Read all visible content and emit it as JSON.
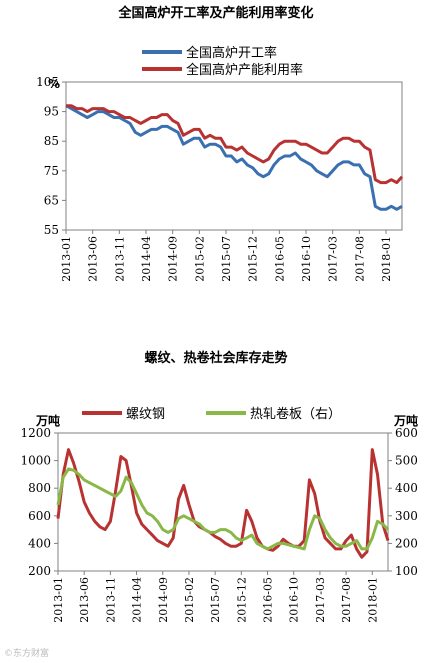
{
  "chart_data": [
    {
      "type": "line",
      "title": "全国高炉开工率及产能利用率变化",
      "ylabel": "%",
      "ylim": [
        55,
        105
      ],
      "yticks": [
        55,
        65,
        75,
        85,
        95,
        105
      ],
      "xticks": [
        "2013-01",
        "2013-06",
        "2013-11",
        "2014-04",
        "2014-09",
        "2015-02",
        "2015-07",
        "2015-12",
        "2016-05",
        "2016-10",
        "2017-03",
        "2017-08",
        "2018-01"
      ],
      "x": [
        "2013-01",
        "2013-02",
        "2013-03",
        "2013-04",
        "2013-05",
        "2013-06",
        "2013-07",
        "2013-08",
        "2013-09",
        "2013-10",
        "2013-11",
        "2013-12",
        "2014-01",
        "2014-02",
        "2014-03",
        "2014-04",
        "2014-05",
        "2014-06",
        "2014-07",
        "2014-08",
        "2014-09",
        "2014-10",
        "2014-11",
        "2014-12",
        "2015-01",
        "2015-02",
        "2015-03",
        "2015-04",
        "2015-05",
        "2015-06",
        "2015-07",
        "2015-08",
        "2015-09",
        "2015-10",
        "2015-11",
        "2015-12",
        "2016-01",
        "2016-02",
        "2016-03",
        "2016-04",
        "2016-05",
        "2016-06",
        "2016-07",
        "2016-08",
        "2016-09",
        "2016-10",
        "2016-11",
        "2016-12",
        "2017-01",
        "2017-02",
        "2017-03",
        "2017-04",
        "2017-05",
        "2017-06",
        "2017-07",
        "2017-08",
        "2017-09",
        "2017-10",
        "2017-11",
        "2017-12",
        "2018-01",
        "2018-02",
        "2018-03",
        "2018-04"
      ],
      "legend": "top-center",
      "series": [
        {
          "name": "全国高炉开工率",
          "color": "#3a6fb0",
          "values": [
            97,
            96,
            95,
            94,
            93,
            94,
            95,
            95,
            94,
            93,
            93,
            92,
            91,
            88,
            87,
            88,
            89,
            89,
            90,
            90,
            89,
            88,
            84,
            85,
            86,
            86,
            83,
            84,
            84,
            83,
            80,
            80,
            78,
            79,
            77,
            76,
            74,
            73,
            74,
            77,
            79,
            80,
            80,
            81,
            79,
            78,
            77,
            75,
            74,
            73,
            75,
            77,
            78,
            78,
            77,
            77,
            74,
            73,
            63,
            62,
            62,
            63,
            62,
            63
          ]
        },
        {
          "name": "全国高炉产能利用率",
          "color": "#b83232",
          "values": [
            97,
            97,
            96,
            96,
            95,
            96,
            96,
            96,
            95,
            95,
            94,
            93,
            93,
            92,
            91,
            92,
            93,
            93,
            94,
            94,
            92,
            91,
            87,
            88,
            89,
            89,
            86,
            87,
            86,
            86,
            83,
            83,
            82,
            83,
            81,
            80,
            79,
            78,
            79,
            82,
            84,
            85,
            85,
            85,
            84,
            84,
            83,
            82,
            81,
            81,
            83,
            85,
            86,
            86,
            85,
            85,
            83,
            82,
            72,
            71,
            71,
            72,
            71,
            73
          ]
        }
      ]
    },
    {
      "type": "line",
      "title": "螺纹、热卷社会库存走势",
      "ylabel_left": "万吨",
      "ylabel_right": "万吨",
      "ylim_left": [
        200,
        1200
      ],
      "ylim_right": [
        100,
        600
      ],
      "yticks_left": [
        200,
        400,
        600,
        800,
        1000,
        1200
      ],
      "yticks_right": [
        100,
        200,
        300,
        400,
        500,
        600
      ],
      "xticks": [
        "2013-01",
        "2013-06",
        "2013-11",
        "2014-04",
        "2014-09",
        "2015-02",
        "2015-07",
        "2015-12",
        "2016-05",
        "2016-10",
        "2017-03",
        "2017-08",
        "2018-01"
      ],
      "x": [
        "2013-01",
        "2013-02",
        "2013-03",
        "2013-04",
        "2013-05",
        "2013-06",
        "2013-07",
        "2013-08",
        "2013-09",
        "2013-10",
        "2013-11",
        "2013-12",
        "2014-01",
        "2014-02",
        "2014-03",
        "2014-04",
        "2014-05",
        "2014-06",
        "2014-07",
        "2014-08",
        "2014-09",
        "2014-10",
        "2014-11",
        "2014-12",
        "2015-01",
        "2015-02",
        "2015-03",
        "2015-04",
        "2015-05",
        "2015-06",
        "2015-07",
        "2015-08",
        "2015-09",
        "2015-10",
        "2015-11",
        "2015-12",
        "2016-01",
        "2016-02",
        "2016-03",
        "2016-04",
        "2016-05",
        "2016-06",
        "2016-07",
        "2016-08",
        "2016-09",
        "2016-10",
        "2016-11",
        "2016-12",
        "2017-01",
        "2017-02",
        "2017-03",
        "2017-04",
        "2017-05",
        "2017-06",
        "2017-07",
        "2017-08",
        "2017-09",
        "2017-10",
        "2017-11",
        "2017-12",
        "2018-01",
        "2018-02",
        "2018-03",
        "2018-04"
      ],
      "legend": "top-center",
      "series": [
        {
          "name": "螺纹钢",
          "axis": "left",
          "color": "#b83232",
          "values": [
            580,
            900,
            1080,
            980,
            850,
            700,
            620,
            560,
            520,
            500,
            560,
            780,
            1030,
            1000,
            820,
            620,
            540,
            500,
            460,
            420,
            400,
            380,
            440,
            720,
            820,
            680,
            560,
            520,
            500,
            480,
            450,
            430,
            400,
            380,
            380,
            400,
            640,
            560,
            440,
            380,
            360,
            350,
            380,
            430,
            400,
            380,
            380,
            420,
            860,
            760,
            560,
            440,
            400,
            360,
            360,
            420,
            460,
            360,
            300,
            340,
            1080,
            900,
            540,
            420
          ]
        },
        {
          "name": "热轧卷板（右）",
          "axis": "right",
          "color": "#8ab848",
          "values": [
            340,
            440,
            470,
            465,
            450,
            430,
            420,
            410,
            400,
            390,
            380,
            370,
            390,
            440,
            420,
            380,
            340,
            310,
            300,
            280,
            250,
            240,
            250,
            290,
            300,
            290,
            280,
            270,
            250,
            240,
            240,
            250,
            250,
            240,
            220,
            210,
            220,
            230,
            200,
            190,
            180,
            190,
            200,
            200,
            195,
            190,
            185,
            180,
            250,
            300,
            290,
            250,
            220,
            200,
            190,
            190,
            200,
            210,
            180,
            180,
            220,
            280,
            270,
            250
          ]
        }
      ]
    }
  ],
  "watermark": "©东方财富"
}
